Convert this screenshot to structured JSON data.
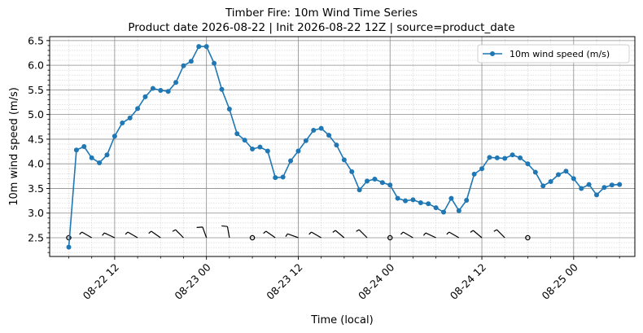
{
  "chart_data": {
    "type": "line",
    "title": "Timber Fire: 10m Wind Time Series",
    "subtitle": "Product date 2026-08-22 | Init 2026-08-22 12Z | source=product_date",
    "xlabel": "Time (local)",
    "ylabel": "10m wind speed (m/s)",
    "x_start": "2026-08-22 06:00",
    "x_step_hours": 1,
    "xlim": [
      "2026-08-22 03:30",
      "2026-08-25 08:00"
    ],
    "ylim": [
      2.12,
      6.58
    ],
    "x_tick_labels": [
      "08-22 12",
      "08-23 00",
      "08-23 12",
      "08-24 00",
      "08-24 12",
      "08-25 00"
    ],
    "y_tick_labels": [
      "2.5",
      "3.0",
      "3.5",
      "4.0",
      "4.5",
      "5.0",
      "5.5",
      "6.0",
      "6.5"
    ],
    "grid": true,
    "legend_position": "top-right",
    "series": [
      {
        "name": "10m wind speed (m/s)",
        "color": "#1f77b4",
        "marker": "circle",
        "values": [
          2.31,
          4.28,
          4.35,
          4.12,
          4.02,
          4.18,
          4.56,
          4.83,
          4.93,
          5.12,
          5.36,
          5.53,
          5.49,
          5.47,
          5.65,
          5.99,
          6.08,
          6.38,
          6.38,
          6.04,
          5.51,
          5.11,
          4.61,
          4.48,
          4.3,
          4.34,
          4.26,
          3.72,
          3.73,
          4.06,
          4.26,
          4.47,
          4.68,
          4.72,
          4.58,
          4.38,
          4.08,
          3.84,
          3.47,
          3.65,
          3.69,
          3.62,
          3.57,
          3.3,
          3.25,
          3.27,
          3.21,
          3.19,
          3.11,
          3.02,
          3.3,
          3.05,
          3.26,
          3.79,
          3.9,
          4.13,
          4.12,
          4.11,
          4.18,
          4.12,
          4.0,
          3.83,
          3.55,
          3.64,
          3.78,
          3.85,
          3.7,
          3.5,
          3.58,
          3.37,
          3.52,
          3.57,
          3.58
        ]
      }
    ],
    "wind_barbs": {
      "y_value": 2.5,
      "x_start": "2026-08-22 06:00",
      "x_step_hours": 3,
      "barbs": [
        {
          "dir": 0,
          "speed": 0
        },
        {
          "dir": 300,
          "speed": 8
        },
        {
          "dir": 295,
          "speed": 8
        },
        {
          "dir": 300,
          "speed": 8
        },
        {
          "dir": 305,
          "speed": 8
        },
        {
          "dir": 315,
          "speed": 8
        },
        {
          "dir": 340,
          "speed": 12
        },
        {
          "dir": 350,
          "speed": 12
        },
        {
          "dir": 0,
          "speed": 0
        },
        {
          "dir": 305,
          "speed": 8
        },
        {
          "dir": 290,
          "speed": 8
        },
        {
          "dir": 300,
          "speed": 8
        },
        {
          "dir": 310,
          "speed": 8
        },
        {
          "dir": 315,
          "speed": 8
        },
        {
          "dir": 0,
          "speed": 0
        },
        {
          "dir": 300,
          "speed": 8
        },
        {
          "dir": 295,
          "speed": 8
        },
        {
          "dir": 300,
          "speed": 8
        },
        {
          "dir": 310,
          "speed": 8
        },
        {
          "dir": 315,
          "speed": 8
        },
        {
          "dir": 0,
          "speed": 0
        }
      ]
    }
  }
}
